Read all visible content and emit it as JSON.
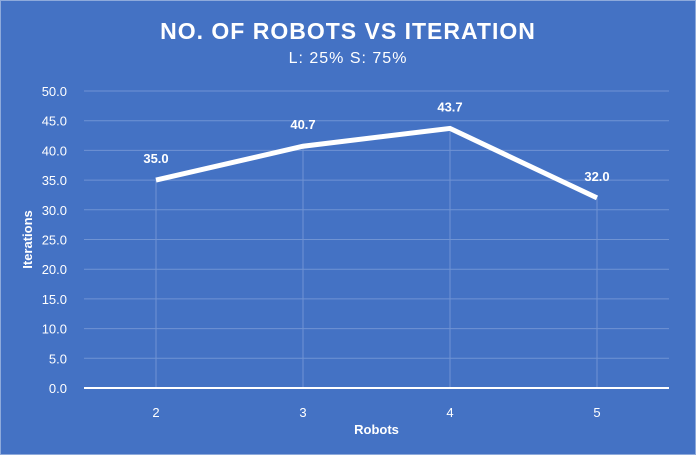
{
  "chart_data": {
    "type": "line",
    "title": "NO. OF ROBOTS VS ITERATION",
    "subtitle": "L: 25% S: 75%",
    "xlabel": "Robots",
    "ylabel": "Iterations",
    "categories": [
      "2",
      "3",
      "4",
      "5"
    ],
    "series": [
      {
        "values": [
          35.0,
          40.7,
          43.7,
          32.0
        ]
      }
    ],
    "data_labels": [
      "35.0",
      "40.7",
      "43.7",
      "32.0"
    ],
    "yticks": [
      "0.0",
      "5.0",
      "10.0",
      "15.0",
      "20.0",
      "25.0",
      "30.0",
      "35.0",
      "40.0",
      "45.0",
      "50.0"
    ],
    "ylim": [
      0,
      50
    ],
    "grid": true,
    "legend": "none",
    "colors": {
      "background": "#4472C4",
      "line": "#ffffff",
      "gridline": "#6f93d3",
      "axis": "#ffffff"
    }
  }
}
